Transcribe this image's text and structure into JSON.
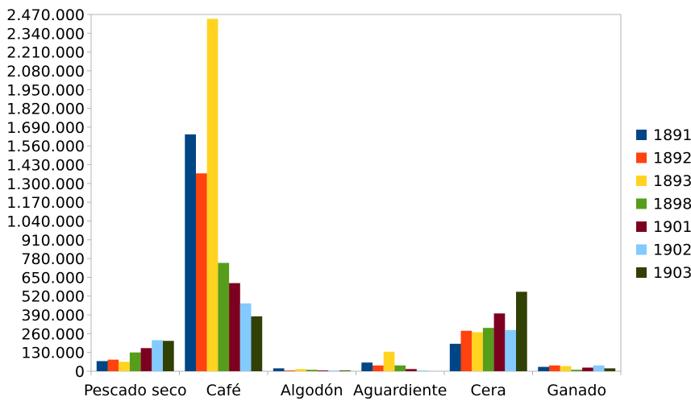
{
  "chart_data": {
    "type": "bar",
    "title": "",
    "xlabel": "",
    "ylabel": "",
    "ylim": [
      0,
      2470000
    ],
    "yticks": [
      "0",
      "130.000",
      "260.000",
      "390.000",
      "520.000",
      "650.000",
      "780.000",
      "910.000",
      "1.040.000",
      "1.170.000",
      "1.300.000",
      "1.430.000",
      "1.560.000",
      "1.690.000",
      "1.820.000",
      "1.950.000",
      "2.080.000",
      "2.210.000",
      "2.340.000",
      "2.470.000"
    ],
    "ytick_values": [
      0,
      130000,
      260000,
      390000,
      520000,
      650000,
      780000,
      910000,
      1040000,
      1170000,
      1300000,
      1430000,
      1560000,
      1690000,
      1820000,
      1950000,
      2080000,
      2210000,
      2340000,
      2470000
    ],
    "categories": [
      "Pescado seco",
      "Café",
      "Algodón",
      "Aguardiente",
      "Cera",
      "Ganado"
    ],
    "grid": false,
    "legend_position": "right",
    "series": [
      {
        "name": "1891",
        "color": "#004586",
        "values": [
          70000,
          1640000,
          20000,
          60000,
          190000,
          30000
        ]
      },
      {
        "name": "1892",
        "color": "#ff420e",
        "values": [
          80000,
          1370000,
          5000,
          40000,
          280000,
          40000
        ]
      },
      {
        "name": "1893",
        "color": "#ffd320",
        "values": [
          65000,
          2440000,
          15000,
          135000,
          270000,
          35000
        ]
      },
      {
        "name": "1898",
        "color": "#579d1c",
        "values": [
          130000,
          750000,
          10000,
          40000,
          300000,
          10000
        ]
      },
      {
        "name": "1901",
        "color": "#7e0021",
        "values": [
          160000,
          610000,
          5000,
          15000,
          400000,
          25000
        ]
      },
      {
        "name": "1902",
        "color": "#83caff",
        "values": [
          215000,
          470000,
          5000,
          5000,
          285000,
          40000
        ]
      },
      {
        "name": "1903",
        "color": "#314004",
        "values": [
          210000,
          380000,
          5000,
          0,
          550000,
          20000
        ]
      }
    ]
  }
}
